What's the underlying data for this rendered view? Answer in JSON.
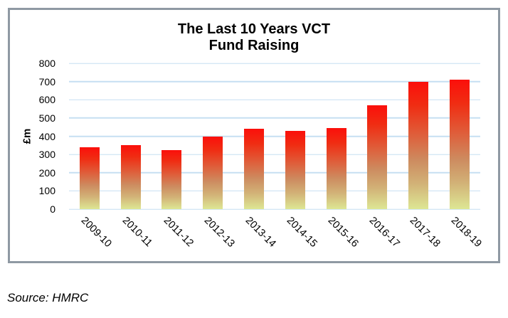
{
  "chart_data": {
    "type": "bar",
    "title_line1": "The Last 10 Years VCT",
    "title_line2": "Fund Raising",
    "categories": [
      "2009-10",
      "2010-11",
      "2011-12",
      "2012-13",
      "2013-14",
      "2014-15",
      "2015-16",
      "2016-17",
      "2017-18",
      "2018-19"
    ],
    "values": [
      340,
      350,
      325,
      400,
      440,
      430,
      445,
      570,
      700,
      712
    ],
    "ylabel": "£m",
    "xlabel": "",
    "ylim": [
      0,
      800
    ],
    "yticks": [
      0,
      100,
      200,
      300,
      400,
      500,
      600,
      700,
      800
    ],
    "grid": "horizontal gridlines on",
    "legend_position": "none",
    "gridline_color": "#c6dff2",
    "frame_border_color": "#8f99a3",
    "bar_gradient_stops": [
      "#fb0f0b 0%",
      "#f02c12 18%",
      "#e05b38 40%",
      "#cd8c60 62%",
      "#d2b277 80%",
      "#dde794 100%"
    ]
  },
  "source_note": "Source: HMRC"
}
